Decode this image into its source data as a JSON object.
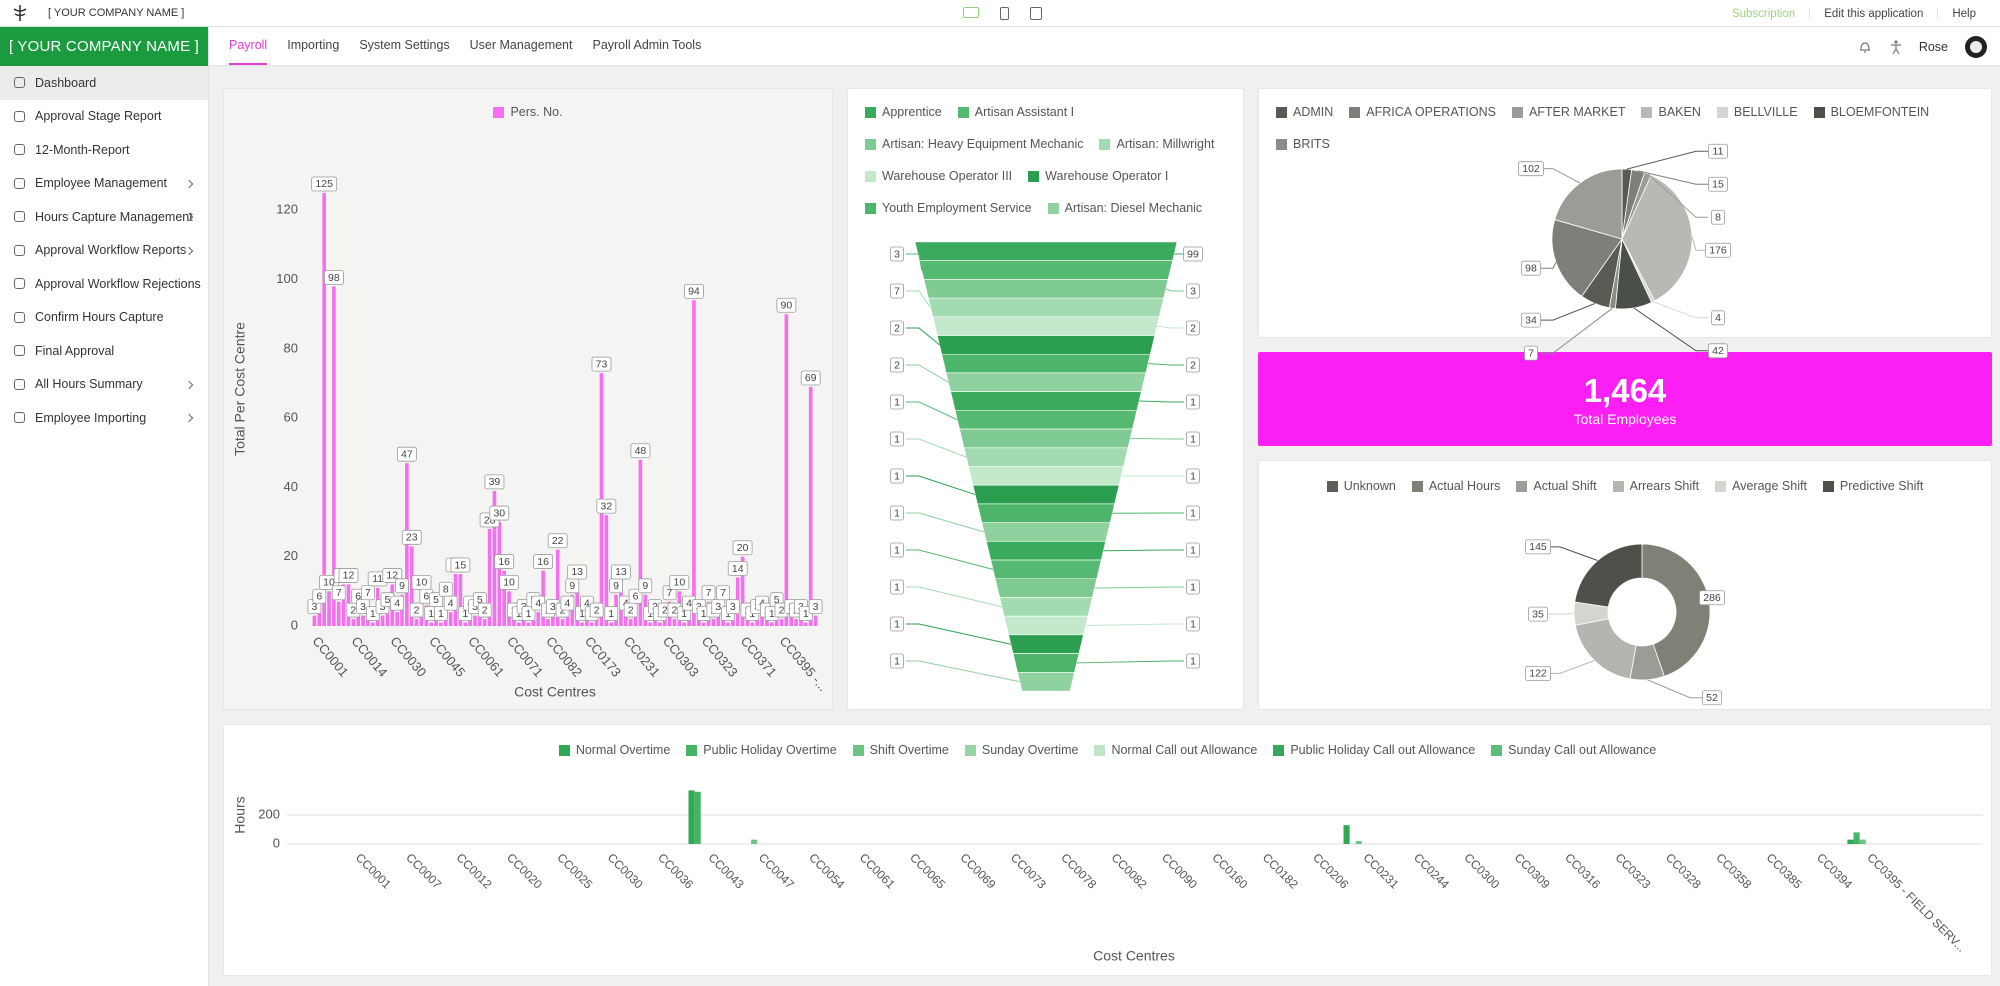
{
  "app": {
    "company": "[ YOUR COMPANY NAME ]",
    "brand": "[ YOUR COMPANY NAME ]",
    "top_links": [
      "Subscription",
      "Edit this application",
      "Help"
    ],
    "tabs": [
      {
        "label": "Payroll",
        "active": true
      },
      {
        "label": "Importing",
        "active": false
      },
      {
        "label": "System Settings",
        "active": false
      },
      {
        "label": "User Management",
        "active": false
      },
      {
        "label": "Payroll Admin Tools",
        "active": false
      }
    ],
    "user": "Rose",
    "menu": [
      {
        "label": "Dashboard",
        "submenu": false,
        "active": true
      },
      {
        "label": "Approval Stage Report",
        "submenu": false,
        "active": false
      },
      {
        "label": "12-Month-Report",
        "submenu": false,
        "active": false
      },
      {
        "label": "Employee Management",
        "submenu": true,
        "active": false
      },
      {
        "label": "Hours Capture Management",
        "submenu": true,
        "active": false
      },
      {
        "label": "Approval Workflow Reports",
        "submenu": true,
        "active": false
      },
      {
        "label": "Approval Workflow Rejections",
        "submenu": false,
        "active": false
      },
      {
        "label": "Confirm Hours Capture",
        "submenu": false,
        "active": false
      },
      {
        "label": "Final Approval",
        "submenu": false,
        "active": false
      },
      {
        "label": "All Hours Summary",
        "submenu": true,
        "active": false
      },
      {
        "label": "Employee Importing",
        "submenu": true,
        "active": false
      }
    ]
  },
  "kpi": {
    "value": "1,464",
    "label": "Total Employees"
  },
  "chart_data": [
    {
      "type": "bar",
      "y_label": "Total Per Cost Centre",
      "x_label": "Cost Centres",
      "categories": [
        "CC0001",
        null,
        null,
        null,
        null,
        null,
        null,
        null,
        "CC0014",
        null,
        null,
        null,
        null,
        null,
        null,
        null,
        "CC0030",
        null,
        null,
        null,
        null,
        null,
        null,
        null,
        "CC0045",
        null,
        null,
        null,
        null,
        null,
        null,
        null,
        "CC0061",
        null,
        null,
        null,
        null,
        null,
        null,
        null,
        "CC0071",
        null,
        null,
        null,
        null,
        null,
        null,
        null,
        "CC0082",
        null,
        null,
        null,
        null,
        null,
        null,
        null,
        "CC0173",
        null,
        null,
        null,
        null,
        null,
        null,
        null,
        "CC0231",
        null,
        null,
        null,
        null,
        null,
        null,
        null,
        "CC0303",
        null,
        null,
        null,
        null,
        null,
        null,
        null,
        "CC0323",
        null,
        null,
        null,
        null,
        null,
        null,
        null,
        "CC0371",
        null,
        null,
        null,
        null,
        null,
        null,
        null,
        "CC0395 -...",
        null,
        null,
        null,
        null,
        null,
        null,
        null
      ],
      "series": [
        {
          "name": "Pers. No.",
          "color": "#f570ef",
          "values": [
            3,
            6,
            125,
            10,
            98,
            7,
            12,
            12,
            2,
            6,
            3,
            7,
            1,
            11,
            3,
            5,
            12,
            4,
            9,
            47,
            23,
            2,
            10,
            6,
            1,
            5,
            1,
            8,
            4,
            15,
            15,
            1,
            4,
            3,
            5,
            2,
            28,
            39,
            30,
            16,
            10,
            2,
            1,
            3,
            1,
            5,
            4,
            16,
            2,
            3,
            22,
            2,
            4,
            9,
            13,
            1,
            4,
            1,
            2,
            73,
            32,
            1,
            9,
            13,
            4,
            2,
            6,
            48,
            9,
            1,
            3,
            1,
            2,
            7,
            2,
            10,
            1,
            4,
            94,
            3,
            1,
            7,
            2,
            3,
            7,
            1,
            3,
            14,
            20,
            2,
            1,
            3,
            4,
            2,
            1,
            5,
            2,
            90,
            3,
            2,
            3,
            1,
            69,
            3
          ]
        }
      ],
      "ylim": [
        0,
        140
      ],
      "yticks": [
        0,
        20,
        40,
        60,
        80,
        100,
        120
      ],
      "grid": false,
      "data_labels": true
    },
    {
      "type": "funnel",
      "legend": [
        {
          "name": "Apprentice",
          "color": "#3aaa5c"
        },
        {
          "name": "Artisan Assistant I",
          "color": "#56b972"
        },
        {
          "name": "Artisan: Heavy Equipment Mechanic",
          "color": "#7fca92"
        },
        {
          "name": "Artisan: Millwright",
          "color": "#a3dbb0"
        },
        {
          "name": "Warehouse Operator III",
          "color": "#c3e8cb"
        },
        {
          "name": "Warehouse Operator I",
          "color": "#2c9e50"
        },
        {
          "name": "Youth Employment Service",
          "color": "#4cb56a"
        },
        {
          "name": "Artisan: Diesel Mechanic",
          "color": "#8fd19f"
        }
      ],
      "values": [
        99,
        3,
        3,
        7,
        2,
        2,
        2,
        2,
        1,
        1,
        1,
        1,
        1,
        1,
        1,
        1,
        1,
        1,
        1,
        1,
        1,
        1,
        1,
        1
      ]
    },
    {
      "type": "pie",
      "legend": [
        {
          "name": "ADMIN",
          "color": "#575b52"
        },
        {
          "name": "AFRICA OPERATIONS",
          "color": "#7d8078"
        },
        {
          "name": "AFTER MARKET",
          "color": "#9a9c95"
        },
        {
          "name": "BAKEN",
          "color": "#b7b9b3"
        },
        {
          "name": "BELLVILLE",
          "color": "#d5d6d1"
        },
        {
          "name": "BLOEMFONTEIN",
          "color": "#4a4f47"
        },
        {
          "name": "BRITS",
          "color": "#8a8c85"
        }
      ],
      "values": [
        11,
        15,
        8,
        176,
        4,
        42,
        7,
        34,
        98,
        102
      ]
    },
    {
      "type": "donut",
      "categories": [
        "Unknown",
        "Actual Hours",
        "Actual Shift",
        "Arrears Shift",
        "Average Shift",
        "Predictive Shift"
      ],
      "colors": [
        "#5b5f57",
        "#7d8176",
        "#9a9d95",
        "#b3b6ae",
        "#d3d5cf",
        "#4d5149"
      ],
      "values": [
        null,
        286,
        52,
        122,
        35,
        145
      ]
    },
    {
      "type": "bar",
      "y_label": "Hours",
      "x_label": "Cost Centres",
      "categories": [
        "CC0001",
        "CC0007",
        "CC0012",
        "CC0020",
        "CC0025",
        "CC0030",
        "CC0036",
        "CC0043",
        "CC0047",
        "CC0054",
        "CC0061",
        "CC0065",
        "CC0069",
        "CC0073",
        "CC0078",
        "CC0082",
        "CC0090",
        "CC0160",
        "CC0182",
        "CC0206",
        "CC0231",
        "CC0244",
        "CC0300",
        "CC0309",
        "CC0316",
        "CC0323",
        "CC0328",
        "CC0358",
        "CC0385",
        "CC0394",
        "CC0395 - FIELD SERV..."
      ],
      "series": [
        {
          "name": "Normal Overtime",
          "color": "#2fa954",
          "values": [
            null,
            null,
            null,
            null,
            null,
            null,
            null,
            370,
            null,
            null,
            null,
            null,
            null,
            null,
            null,
            null,
            null,
            null,
            null,
            null,
            130,
            null,
            null,
            null,
            null,
            null,
            null,
            null,
            null,
            null,
            30
          ]
        },
        {
          "name": "Public Holiday Overtime",
          "color": "#47b465",
          "values": [
            null,
            null,
            null,
            null,
            null,
            null,
            null,
            360,
            null,
            null,
            null,
            null,
            null,
            null,
            null,
            null,
            null,
            null,
            null,
            null,
            null,
            null,
            null,
            null,
            null,
            null,
            null,
            null,
            null,
            null,
            80
          ]
        },
        {
          "name": "Shift Overtime",
          "color": "#6cc483",
          "values": [
            null,
            null,
            null,
            null,
            null,
            null,
            null,
            null,
            30,
            null,
            null,
            null,
            null,
            null,
            null,
            null,
            null,
            null,
            null,
            null,
            20,
            null,
            null,
            null,
            null,
            null,
            null,
            null,
            null,
            null,
            30
          ]
        },
        {
          "name": "Sunday Overtime",
          "color": "#96d5a5",
          "values": [
            null,
            null,
            null,
            null,
            null,
            null,
            null,
            null,
            null,
            null,
            null,
            null,
            null,
            null,
            null,
            null,
            null,
            null,
            null,
            null,
            null,
            null,
            null,
            null,
            null,
            null,
            null,
            null,
            null,
            null,
            null
          ]
        },
        {
          "name": "Normal Call out Allowance",
          "color": "#c0e6c8",
          "values": [
            null,
            null,
            null,
            null,
            null,
            null,
            null,
            null,
            null,
            null,
            null,
            null,
            null,
            null,
            null,
            null,
            null,
            null,
            null,
            null,
            null,
            null,
            null,
            null,
            null,
            null,
            null,
            null,
            null,
            null,
            null
          ]
        },
        {
          "name": "Public Holiday Call out Allowance",
          "color": "#35a85a",
          "values": [
            null,
            null,
            null,
            null,
            null,
            null,
            null,
            null,
            null,
            null,
            null,
            null,
            null,
            null,
            null,
            null,
            null,
            null,
            null,
            null,
            null,
            null,
            null,
            null,
            null,
            null,
            null,
            null,
            null,
            null,
            null
          ]
        },
        {
          "name": "Sunday Call out Allowance",
          "color": "#5cbd78",
          "values": [
            null,
            null,
            null,
            null,
            null,
            null,
            null,
            null,
            null,
            null,
            null,
            null,
            null,
            null,
            null,
            null,
            null,
            null,
            null,
            null,
            null,
            null,
            null,
            null,
            null,
            null,
            null,
            null,
            null,
            null,
            null
          ]
        }
      ],
      "ylim": [
        0,
        400
      ],
      "yticks": [
        0,
        200
      ],
      "grid": true,
      "data_labels": false
    }
  ]
}
